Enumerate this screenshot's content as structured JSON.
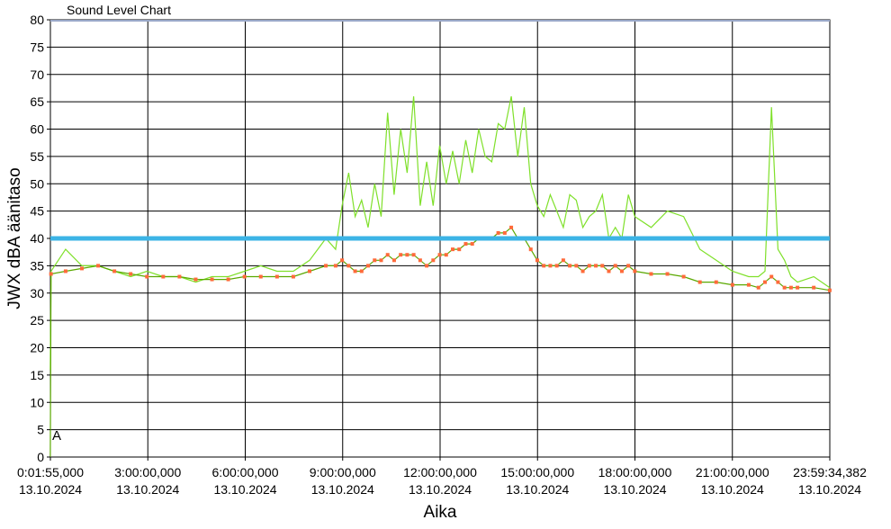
{
  "chart_data": {
    "type": "line",
    "title": "Sound Level Chart",
    "xlabel": "Aika",
    "ylabel": "JWX dBA äänitaso",
    "ylim": [
      0,
      80
    ],
    "y_ticks": [
      0,
      5,
      10,
      15,
      20,
      25,
      30,
      35,
      40,
      45,
      50,
      55,
      60,
      65,
      70,
      75,
      80
    ],
    "x_ticks": [
      {
        "time": "0:01:55,000",
        "date": "13.10.2024"
      },
      {
        "time": "3:00:00,000",
        "date": "13.10.2024"
      },
      {
        "time": "6:00:00,000",
        "date": "13.10.2024"
      },
      {
        "time": "9:00:00,000",
        "date": "13.10.2024"
      },
      {
        "time": "12:00:00,000",
        "date": "13.10.2024"
      },
      {
        "time": "15:00:00,000",
        "date": "13.10.2024"
      },
      {
        "time": "18:00:00,000",
        "date": "13.10.2024"
      },
      {
        "time": "21:00:00,000",
        "date": "13.10.2024"
      },
      {
        "time": "23:59:34,382",
        "date": "13.10.2024"
      }
    ],
    "x_range_hours": [
      0.032,
      23.993
    ],
    "grid": true,
    "marker_label": "A",
    "threshold": {
      "value": 40,
      "color": "#3cb4e6"
    },
    "colors": {
      "peak_line": "#7fe02a",
      "avg_marker": "#ff6a3a",
      "avg_line": "#5aa800"
    },
    "series": [
      {
        "kind": "peak",
        "x": [
          0.03,
          0.05,
          0.5,
          1.0,
          1.5,
          2.0,
          2.5,
          3.0,
          3.5,
          4.0,
          4.5,
          5.0,
          5.5,
          6.0,
          6.5,
          7.0,
          7.5,
          8.0,
          8.5,
          8.8,
          9.0,
          9.2,
          9.4,
          9.6,
          9.8,
          10.0,
          10.2,
          10.4,
          10.6,
          10.8,
          11.0,
          11.2,
          11.4,
          11.6,
          11.8,
          12.0,
          12.2,
          12.4,
          12.6,
          12.8,
          13.0,
          13.2,
          13.4,
          13.6,
          13.8,
          14.0,
          14.2,
          14.4,
          14.6,
          14.8,
          15.0,
          15.2,
          15.4,
          15.6,
          15.8,
          16.0,
          16.2,
          16.4,
          16.6,
          16.8,
          17.0,
          17.2,
          17.4,
          17.6,
          17.8,
          18.0,
          18.5,
          19.0,
          19.5,
          20.0,
          20.5,
          21.0,
          21.5,
          21.8,
          22.0,
          22.2,
          22.4,
          22.6,
          22.8,
          23.0,
          23.5,
          23.99
        ],
        "y": [
          16,
          34,
          38,
          35,
          35,
          34,
          33,
          34,
          33,
          33,
          32,
          33,
          33,
          34,
          35,
          34,
          34,
          36,
          40,
          38,
          46,
          52,
          44,
          47,
          42,
          50,
          44,
          63,
          48,
          60,
          52,
          66,
          46,
          54,
          46,
          57,
          50,
          56,
          50,
          58,
          52,
          60,
          55,
          54,
          61,
          60,
          66,
          55,
          64,
          50,
          46,
          44,
          48,
          45,
          42,
          48,
          47,
          42,
          44,
          45,
          48,
          40,
          42,
          40,
          48,
          44,
          42,
          45,
          44,
          38,
          36,
          34,
          33,
          33,
          34,
          64,
          38,
          36,
          33,
          32,
          33,
          31
        ]
      },
      {
        "kind": "average",
        "x": [
          0.03,
          0.05,
          0.5,
          1.0,
          1.5,
          2.0,
          2.5,
          3.0,
          3.5,
          4.0,
          4.5,
          5.0,
          5.5,
          6.0,
          6.5,
          7.0,
          7.5,
          8.0,
          8.5,
          8.8,
          9.0,
          9.2,
          9.4,
          9.6,
          9.8,
          10.0,
          10.2,
          10.4,
          10.6,
          10.8,
          11.0,
          11.2,
          11.4,
          11.6,
          11.8,
          12.0,
          12.2,
          12.4,
          12.6,
          12.8,
          13.0,
          13.2,
          13.4,
          13.6,
          13.8,
          14.0,
          14.2,
          14.4,
          14.6,
          14.8,
          15.0,
          15.2,
          15.4,
          15.6,
          15.8,
          16.0,
          16.2,
          16.4,
          16.6,
          16.8,
          17.0,
          17.2,
          17.4,
          17.6,
          17.8,
          18.0,
          18.5,
          19.0,
          19.5,
          20.0,
          20.5,
          21.0,
          21.5,
          21.8,
          22.0,
          22.2,
          22.4,
          22.6,
          22.8,
          23.0,
          23.5,
          23.99
        ],
        "y": [
          0,
          33.5,
          34,
          34.5,
          35,
          34,
          33.5,
          33,
          33,
          33,
          32.5,
          32.5,
          32.5,
          33,
          33,
          33,
          33,
          34,
          35,
          35,
          36,
          35,
          34,
          34,
          35,
          36,
          36,
          37,
          36,
          37,
          37,
          37,
          36,
          35,
          36,
          37,
          37,
          38,
          38,
          39,
          39,
          40,
          40,
          40,
          41,
          41,
          42,
          40,
          40,
          38,
          36,
          35,
          35,
          35,
          36,
          35,
          35,
          34,
          35,
          35,
          35,
          34,
          35,
          34,
          35,
          34,
          33.5,
          33.5,
          33,
          32,
          32,
          31.5,
          31.5,
          31,
          32,
          33,
          32,
          31,
          31,
          31,
          31,
          30.5
        ]
      }
    ]
  }
}
